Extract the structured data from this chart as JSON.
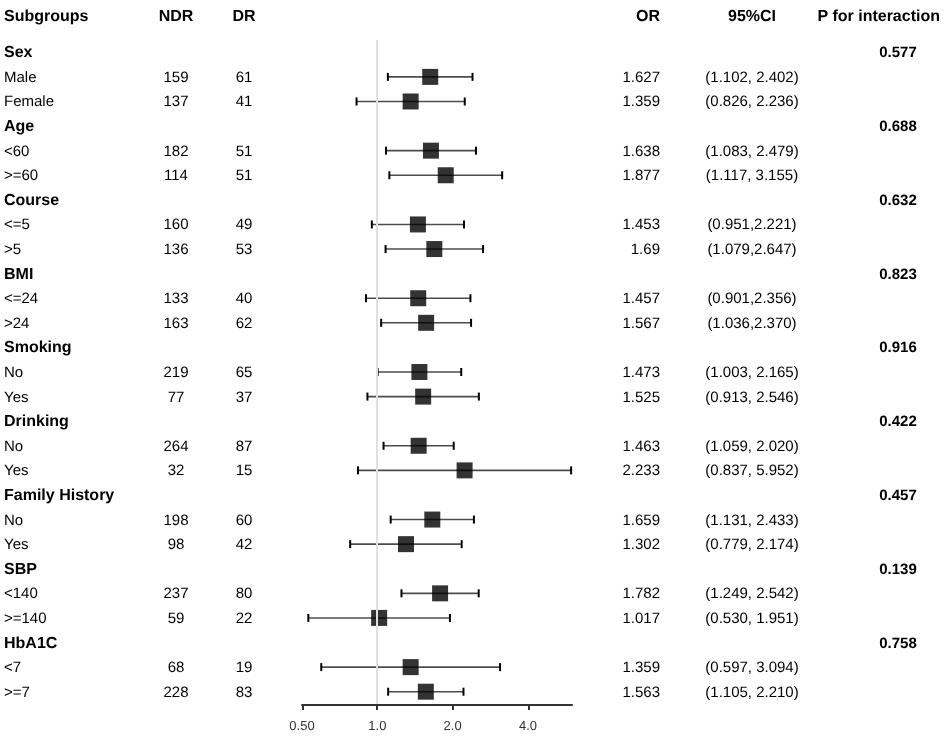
{
  "chart_data": [
    {
      "type": "other",
      "ylabel": "Subgroups",
      "data_labels": true,
      "categories": [
        "Sex",
        "Male",
        "Female",
        "Age",
        "<60",
        ">=60",
        "Course",
        "<=5",
        ">5",
        "BMI",
        "<=24",
        ">24",
        "Smoking",
        "No",
        "Yes",
        "Drinking",
        "No",
        "Yes",
        "Family History",
        "No",
        "Yes",
        "SBP",
        "<140",
        ">=140",
        "HbA1C",
        "<7",
        ">=7"
      ],
      "series": [
        {
          "name": "NDR",
          "values": [
            null,
            159,
            137,
            null,
            182,
            114,
            null,
            160,
            136,
            null,
            133,
            163,
            null,
            219,
            77,
            null,
            264,
            32,
            null,
            198,
            98,
            null,
            237,
            59,
            null,
            68,
            228
          ]
        },
        {
          "name": "DR",
          "values": [
            null,
            61,
            41,
            null,
            51,
            51,
            null,
            49,
            53,
            null,
            40,
            62,
            null,
            65,
            37,
            null,
            87,
            15,
            null,
            60,
            42,
            null,
            80,
            22,
            null,
            19,
            83
          ]
        },
        {
          "name": "P for interaction",
          "values": [
            0.577,
            null,
            null,
            0.688,
            null,
            null,
            0.632,
            null,
            null,
            0.823,
            null,
            null,
            0.916,
            null,
            null,
            0.422,
            null,
            null,
            0.457,
            null,
            null,
            0.139,
            null,
            null,
            0.758,
            null,
            null
          ]
        }
      ],
      "annotations": [
        "95%CI",
        "(1.102, 2.402)",
        "(0.826, 2.236)",
        "(1.083, 2.479)",
        "(1.117, 3.155)",
        "(0.951,2.221)",
        "(1.079,2.647)",
        "(0.901,2.356)",
        "(1.036,2.370)",
        "(1.003, 2.165)",
        "(0.913, 2.546)",
        "(1.059, 2.020)",
        "(0.837, 5.952)",
        "(1.131, 2.433)",
        "(0.779, 2.174)",
        "(1.249, 2.542)",
        "(0.530, 1.951)",
        "(0.597, 3.094)",
        "(1.105, 2.210)"
      ]
    },
    {
      "type": "scatter",
      "orientation": "horizontal",
      "categories": [
        null,
        null,
        null,
        null,
        null,
        null,
        null,
        null,
        null,
        null,
        null,
        null,
        null,
        null,
        null,
        null,
        null,
        null,
        null,
        null,
        null,
        null,
        null,
        null,
        null,
        null,
        null
      ],
      "log": "x",
      "xlim": [
        0.5,
        6
      ],
      "xticks": [
        {
          "value": 0.5,
          "label": "0.50"
        },
        {
          "value": 1,
          "label": "1.0"
        },
        {
          "value": 2,
          "label": "2.0"
        },
        {
          "value": 4,
          "label": "4.0"
        }
      ],
      "marker": "square",
      "grid": false,
      "legend": false,
      "ref_lines": [
        {
          "axis": "x",
          "value": 1,
          "color": "#e0e0e0"
        }
      ],
      "series": [
        {
          "name": "OR",
          "color": "#000000",
          "values": [
            null,
            1.627,
            1.359,
            null,
            1.638,
            1.877,
            null,
            1.453,
            1.69,
            null,
            1.457,
            1.567,
            null,
            1.473,
            1.525,
            null,
            1.463,
            2.233,
            null,
            1.659,
            1.302,
            null,
            1.782,
            1.017,
            null,
            1.359,
            1.563
          ],
          "errors": [
            null,
            [
              1.102,
              2.402
            ],
            [
              0.826,
              2.236
            ],
            null,
            [
              1.083,
              2.479
            ],
            [
              1.117,
              3.155
            ],
            null,
            [
              0.951,
              2.221
            ],
            [
              1.079,
              2.647
            ],
            null,
            [
              0.901,
              2.356
            ],
            [
              1.036,
              2.37
            ],
            null,
            [
              1.003,
              2.165
            ],
            [
              0.913,
              2.546
            ],
            null,
            [
              1.059,
              2.02
            ],
            [
              0.837,
              5.952
            ],
            null,
            [
              1.131,
              2.433
            ],
            [
              0.779,
              2.174
            ],
            null,
            [
              1.249,
              2.542
            ],
            [
              0.53,
              1.951
            ],
            null,
            [
              0.597,
              3.094
            ],
            [
              1.105,
              2.21
            ]
          ],
          "value_labels": [
            null,
            "1.627",
            "1.359",
            null,
            "1.638",
            "1.877",
            null,
            "1.453",
            "1.69",
            null,
            "1.457",
            "1.567",
            null,
            "1.473",
            "1.525",
            null,
            "1.463",
            "2.233",
            null,
            "1.659",
            "1.302",
            null,
            "1.782",
            "1.017",
            null,
            "1.359",
            "1.563"
          ]
        }
      ]
    }
  ]
}
